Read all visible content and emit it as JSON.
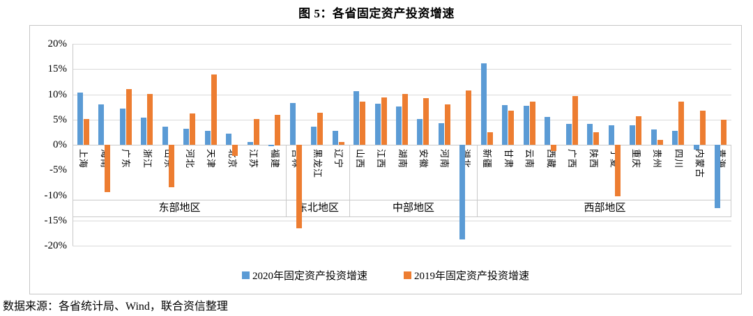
{
  "title": "图 5：各省固定资产投资增速",
  "source_note": "数据来源：各省统计局、Wind，联合资信整理",
  "colors": {
    "series_2020": "#5B9BD5",
    "series_2019": "#ED7D31",
    "gridline": "#D9D9D9",
    "axis": "#C9C9C9",
    "box_border": "#C6C6C6"
  },
  "chart_data": {
    "type": "bar",
    "title": "图 5：各省固定资产投资增速",
    "xlabel": "",
    "ylabel": "",
    "ylim": [
      -20,
      20
    ],
    "ytick_step_pct": 5,
    "ytick_labels": [
      "20%",
      "15%",
      "10%",
      "5%",
      "0%",
      "-5%",
      "-10%",
      "-15%",
      "-20%"
    ],
    "grid": true,
    "legend_position": "bottom",
    "regions": [
      {
        "label": "东部地区",
        "provinces": [
          "上海",
          "海南",
          "广东",
          "浙江",
          "山东",
          "河北",
          "天津",
          "北京",
          "江苏",
          "福建"
        ]
      },
      {
        "label": "东北地区",
        "provinces": [
          "吉林",
          "黑龙江",
          "辽宁"
        ]
      },
      {
        "label": "中部地区",
        "provinces": [
          "山西",
          "江西",
          "湖南",
          "安徽",
          "河南",
          "湖北"
        ]
      },
      {
        "label": "西部地区",
        "provinces": [
          "新疆",
          "甘肃",
          "云南",
          "西藏",
          "广西",
          "陕西",
          "宁夏",
          "重庆",
          "贵州",
          "四川",
          "内蒙古",
          "青海"
        ]
      }
    ],
    "categories": [
      "上海",
      "海南",
      "广东",
      "浙江",
      "山东",
      "河北",
      "天津",
      "北京",
      "江苏",
      "福建",
      "吉林",
      "黑龙江",
      "辽宁",
      "山西",
      "江西",
      "湖南",
      "安徽",
      "河南",
      "湖北",
      "新疆",
      "甘肃",
      "云南",
      "西藏",
      "广西",
      "陕西",
      "宁夏",
      "重庆",
      "贵州",
      "四川",
      "内蒙古",
      "青海"
    ],
    "series": [
      {
        "name": "2020年固定资产投资增速",
        "color": "#5B9BD5",
        "values": [
          10.3,
          8.0,
          7.2,
          5.4,
          3.6,
          3.2,
          2.8,
          2.2,
          0.5,
          -0.3,
          8.3,
          3.6,
          2.7,
          10.6,
          8.2,
          7.6,
          5.1,
          4.3,
          -18.8,
          16.2,
          7.8,
          7.7,
          5.5,
          4.2,
          4.1,
          3.9,
          3.9,
          3.1,
          2.7,
          -0.9,
          -12.5
        ]
      },
      {
        "name": "2019年固定资产投资增速",
        "color": "#ED7D31",
        "values": [
          5.1,
          -9.4,
          11.1,
          10.1,
          -8.4,
          6.2,
          13.9,
          -2.2,
          5.1,
          6.0,
          -16.5,
          6.4,
          0.6,
          8.5,
          9.4,
          10.1,
          9.2,
          8.0,
          10.8,
          2.5,
          6.7,
          8.5,
          -1.2,
          9.6,
          2.5,
          -10.2,
          5.7,
          1.0,
          8.6,
          6.7,
          4.9
        ]
      }
    ]
  }
}
